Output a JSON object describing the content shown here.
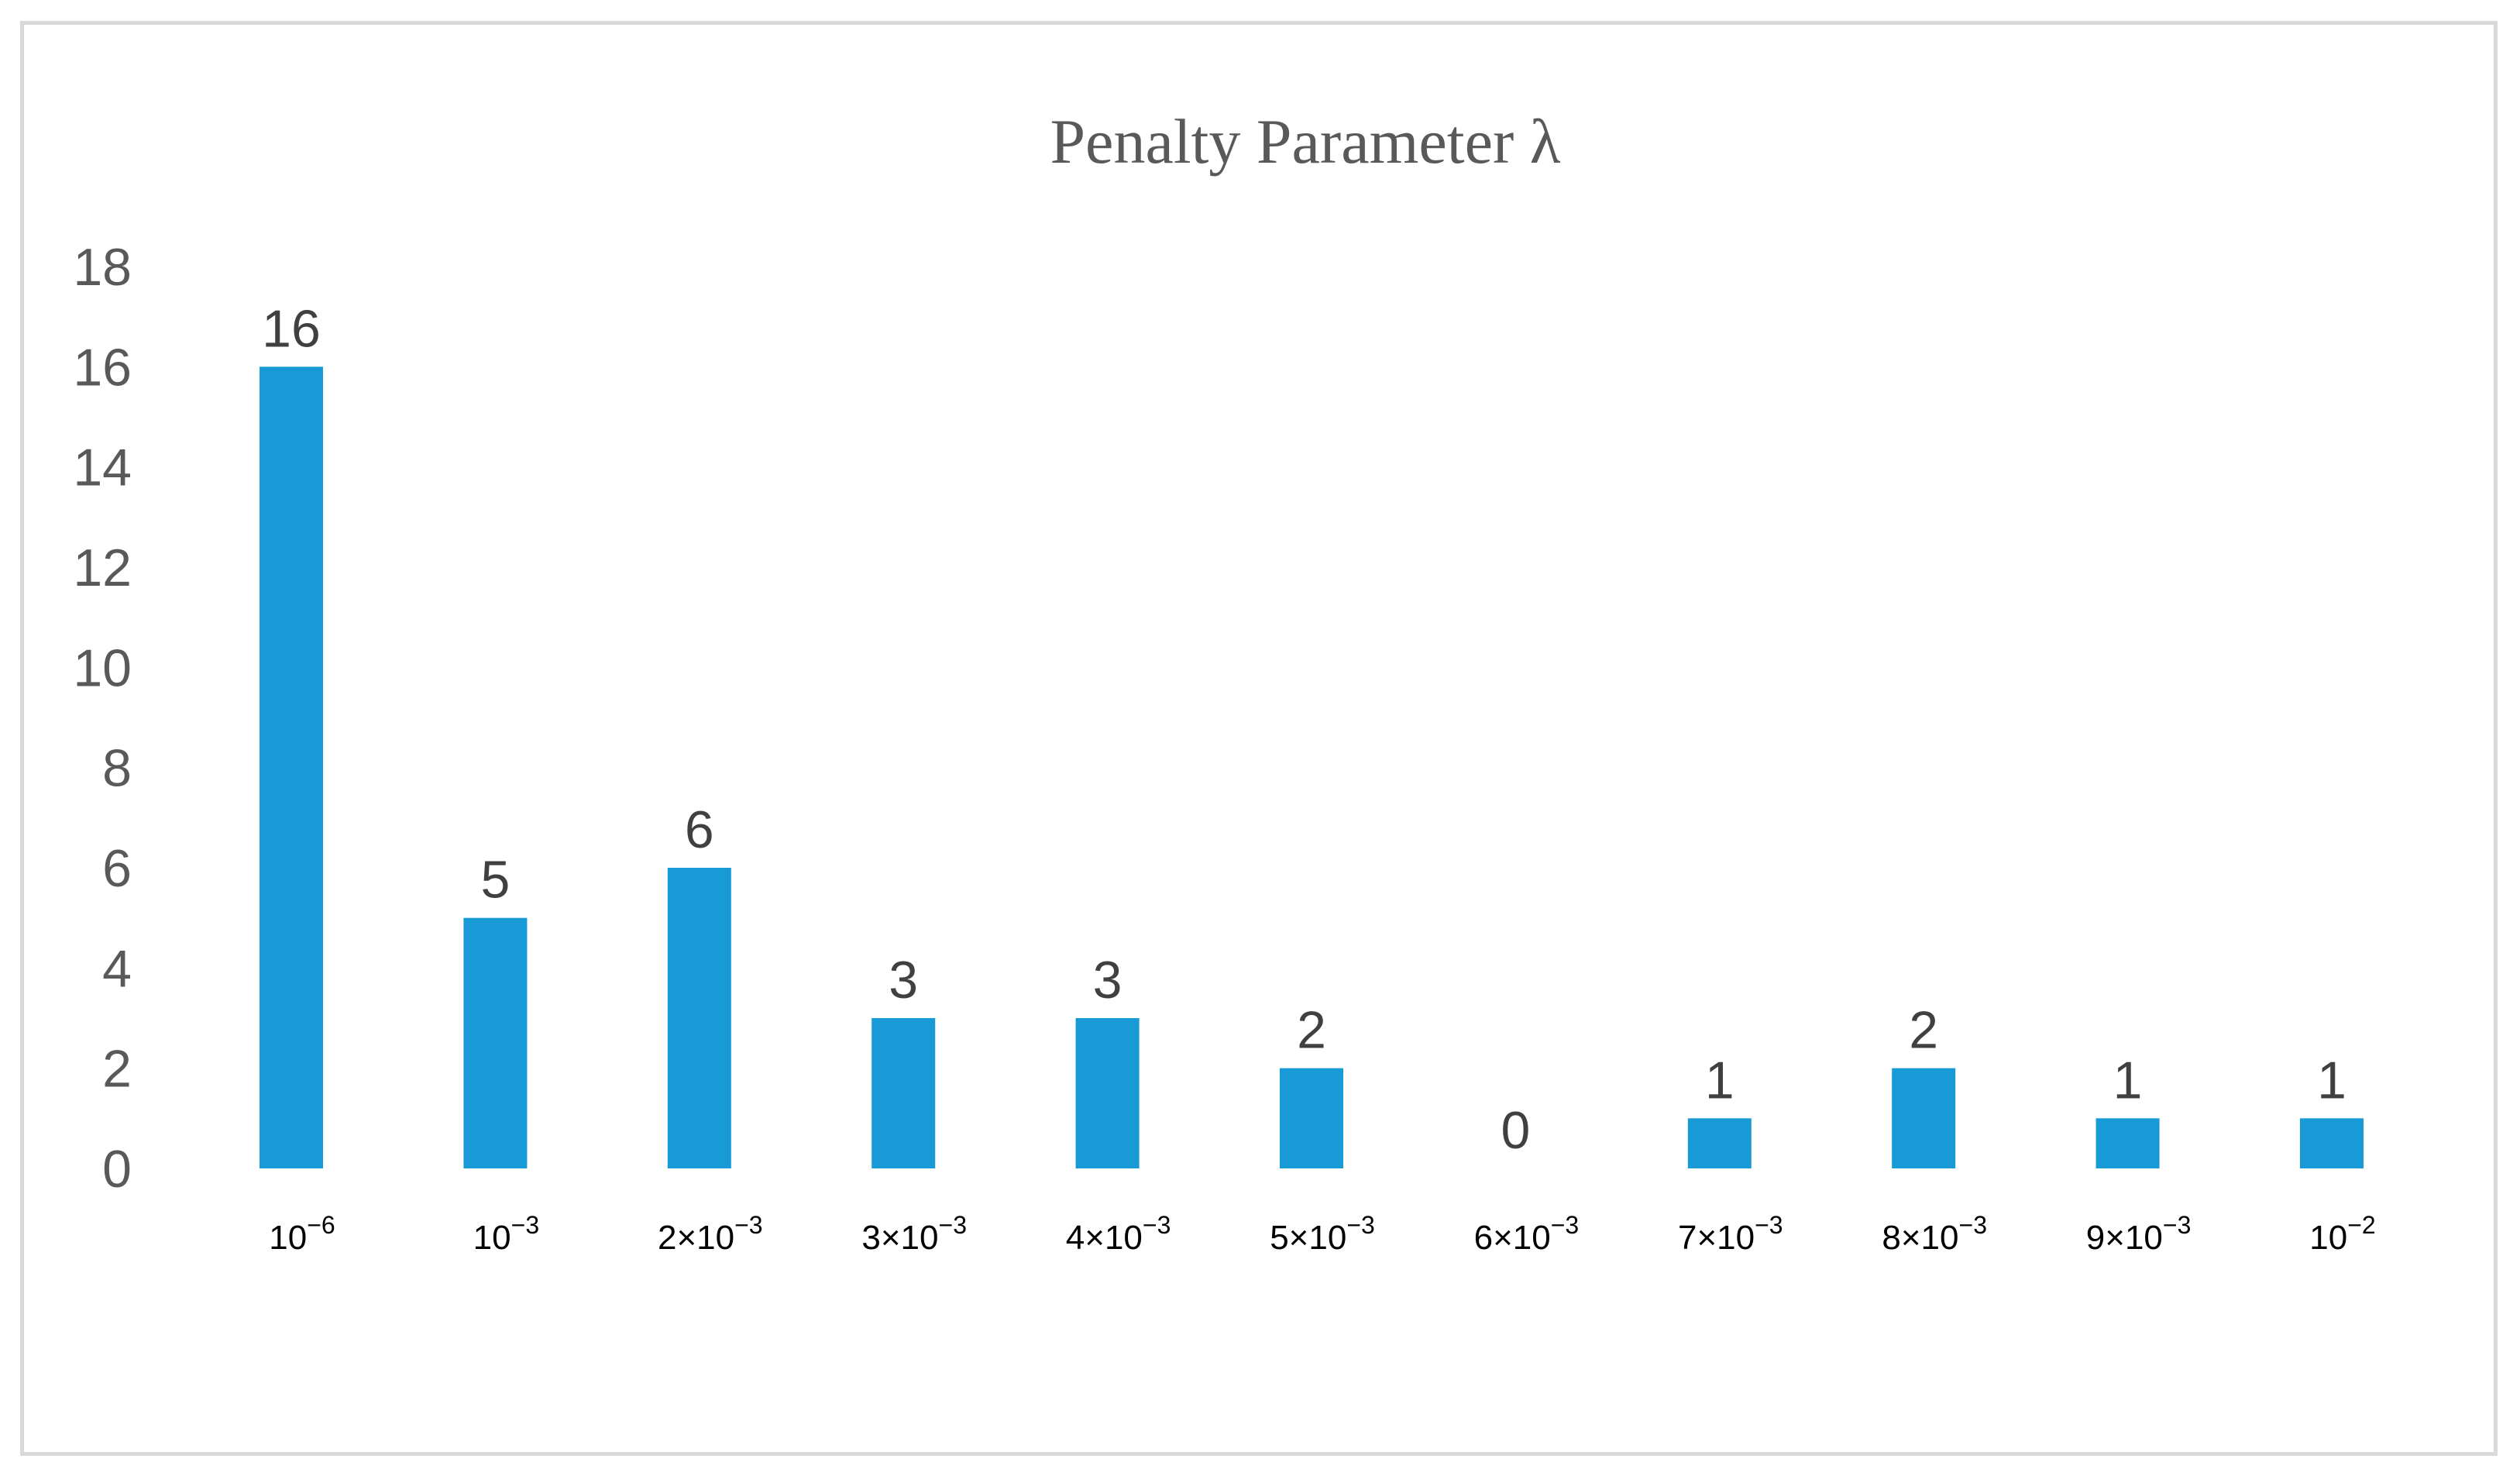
{
  "chart_data": {
    "type": "bar",
    "title": "Penalty Parameter λ",
    "xlabel": "",
    "ylabel": "",
    "ylim": [
      0,
      18
    ],
    "y_ticks": [
      "0",
      "2",
      "4",
      "6",
      "8",
      "10",
      "12",
      "14",
      "16",
      "18"
    ],
    "grid": false,
    "legend": "none",
    "bar_color": "#189AD6",
    "categories": [
      {
        "label": "10−6",
        "coef": "",
        "exp": "−6"
      },
      {
        "label": "10−3",
        "coef": "",
        "exp": "−3"
      },
      {
        "label": "2×10−3",
        "coef": "2×",
        "exp": "−3"
      },
      {
        "label": "3×10−3",
        "coef": "3×",
        "exp": "−3"
      },
      {
        "label": "4×10−3",
        "coef": "4×",
        "exp": "−3"
      },
      {
        "label": "5×10−3",
        "coef": "5×",
        "exp": "−3"
      },
      {
        "label": "6×10−3",
        "coef": "6×",
        "exp": "−3"
      },
      {
        "label": "7×10−3",
        "coef": "7×",
        "exp": "−3"
      },
      {
        "label": "8×10−3",
        "coef": "8×",
        "exp": "−3"
      },
      {
        "label": "9×10−3",
        "coef": "9×",
        "exp": "−3"
      },
      {
        "label": "10−2",
        "coef": "",
        "exp": "−2"
      }
    ],
    "values": [
      16,
      5,
      6,
      3,
      3,
      2,
      0,
      1,
      2,
      1,
      1
    ],
    "data_labels": [
      "16",
      "5",
      "6",
      "3",
      "3",
      "2",
      "0",
      "1",
      "2",
      "1",
      "1"
    ]
  }
}
